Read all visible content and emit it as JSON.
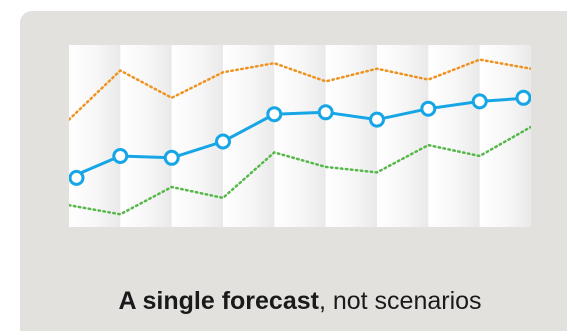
{
  "caption": {
    "bold": "A single forecast",
    "rest": ", not scenarios"
  },
  "colors": {
    "card_bg": "#e3e1de",
    "forecast": "#16a6e6",
    "upper": "#f0921e",
    "lower": "#55b848"
  },
  "chart_data": {
    "type": "line",
    "x": [
      1,
      2,
      3,
      4,
      5,
      6,
      7,
      8,
      9,
      10
    ],
    "ylim": [
      0,
      100
    ],
    "grid": false,
    "series": [
      {
        "id": "forecast",
        "style": "solid-markers",
        "color": "#16a6e6",
        "values": [
          27,
          39,
          38,
          47,
          62,
          63,
          59,
          65,
          69,
          71
        ]
      },
      {
        "id": "upper",
        "style": "dotted",
        "color": "#f0921e",
        "values": [
          59,
          86,
          71,
          85,
          90,
          80,
          87,
          81,
          92,
          87
        ]
      },
      {
        "id": "lower",
        "style": "dotted",
        "color": "#55b848",
        "values": [
          12,
          7,
          22,
          16,
          41,
          33,
          30,
          45,
          39,
          55
        ]
      }
    ]
  }
}
